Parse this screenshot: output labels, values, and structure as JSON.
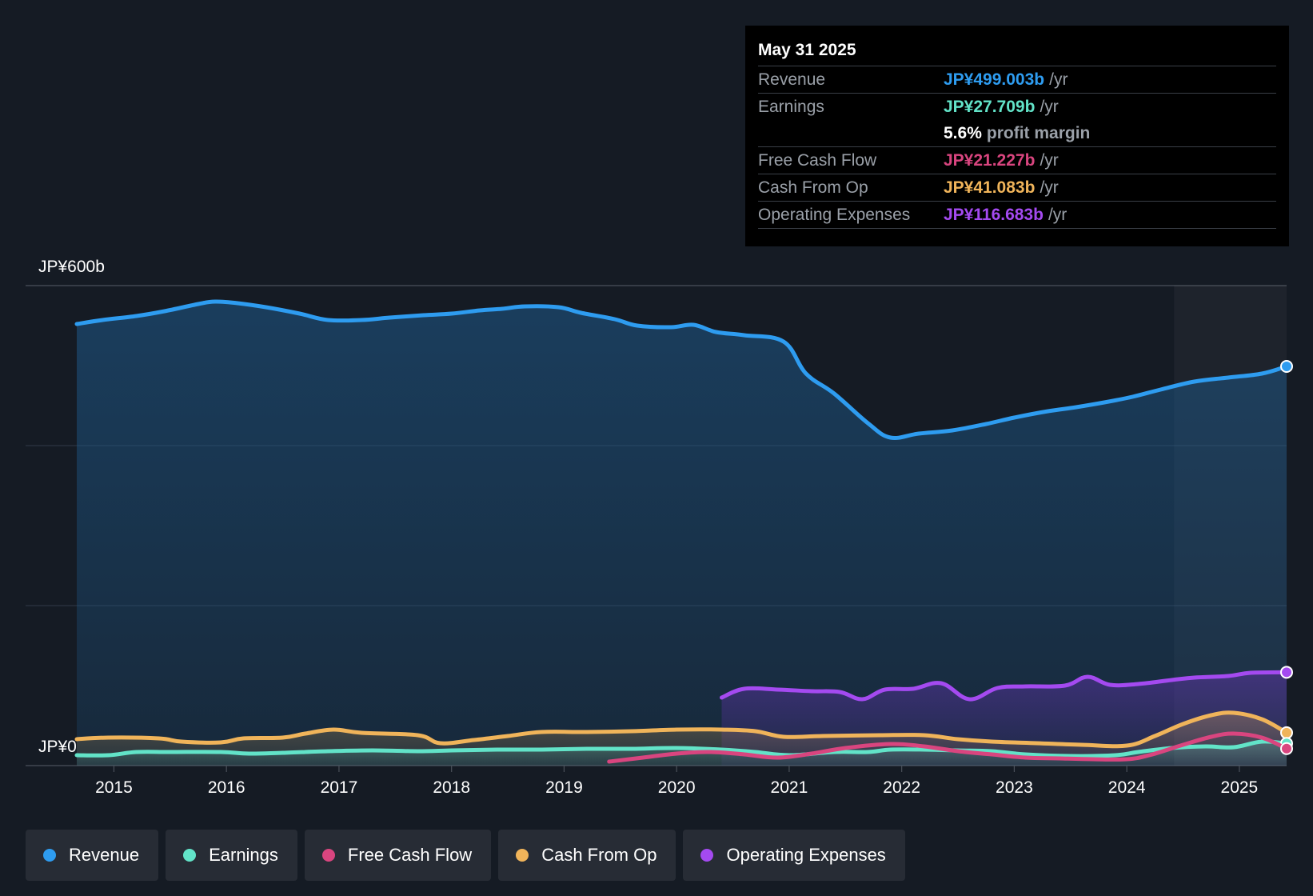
{
  "colors": {
    "background": "#151b24",
    "revenue": "#2e9cf0",
    "earnings": "#62e3c8",
    "free_cash_flow": "#d9457f",
    "cash_from_op": "#f0b45a",
    "operating_expenses": "#a44af0"
  },
  "tooltip": {
    "date": "May 31 2025",
    "rows": [
      {
        "label": "Revenue",
        "value": "JP¥499.003b",
        "unit": "/yr"
      },
      {
        "label": "Earnings",
        "value": "JP¥27.709b",
        "unit": "/yr"
      },
      {
        "margin_value": "5.6%",
        "margin_label": "profit margin"
      },
      {
        "label": "Free Cash Flow",
        "value": "JP¥21.227b",
        "unit": "/yr"
      },
      {
        "label": "Cash From Op",
        "value": "JP¥41.083b",
        "unit": "/yr"
      },
      {
        "label": "Operating Expenses",
        "value": "JP¥116.683b",
        "unit": "/yr"
      }
    ]
  },
  "legend": [
    {
      "label": "Revenue",
      "icon": "revenue-dot-icon"
    },
    {
      "label": "Earnings",
      "icon": "earnings-dot-icon"
    },
    {
      "label": "Free Cash Flow",
      "icon": "free-cash-flow-dot-icon"
    },
    {
      "label": "Cash From Op",
      "icon": "cash-from-op-dot-icon"
    },
    {
      "label": "Operating Expenses",
      "icon": "operating-expenses-dot-icon"
    }
  ],
  "chart_data": {
    "type": "area",
    "title": "",
    "y_label_top": "JP¥600b",
    "y_label_bottom": "JP¥0",
    "ylim": [
      0,
      600
    ],
    "xlim": [
      2014.67,
      2025.42
    ],
    "x_ticks": [
      2015,
      2016,
      2017,
      2018,
      2019,
      2020,
      2021,
      2022,
      2023,
      2024,
      2025
    ],
    "x_tick_labels": [
      "2015",
      "2016",
      "2017",
      "2018",
      "2019",
      "2020",
      "2021",
      "2022",
      "2023",
      "2024",
      "2025"
    ],
    "highlight_from": 2024.42,
    "series": [
      {
        "name": "Revenue",
        "key": "revenue",
        "fill": true,
        "x": [
          2014.67,
          2014.9,
          2015.2,
          2015.45,
          2015.75,
          2015.9,
          2016.1,
          2016.35,
          2016.65,
          2016.9,
          2017.2,
          2017.45,
          2017.75,
          2018.0,
          2018.25,
          2018.45,
          2018.65,
          2018.95,
          2019.15,
          2019.45,
          2019.65,
          2019.95,
          2020.15,
          2020.35,
          2020.6,
          2020.95,
          2021.15,
          2021.4,
          2021.7,
          2021.9,
          2022.15,
          2022.45,
          2022.75,
          2023.0,
          2023.3,
          2023.55,
          2023.8,
          2024.05,
          2024.3,
          2024.6,
          2024.9,
          2025.2,
          2025.42
        ],
        "values": [
          552,
          557,
          562,
          568,
          577,
          580,
          578,
          573,
          565,
          557,
          557,
          560,
          563,
          565,
          569,
          571,
          574,
          573,
          566,
          558,
          550,
          548,
          551,
          542,
          538,
          530,
          490,
          465,
          428,
          410,
          415,
          419,
          427,
          435,
          443,
          448,
          454,
          461,
          470,
          480,
          485,
          490,
          499
        ]
      },
      {
        "name": "Earnings",
        "key": "earnings",
        "fill": true,
        "x": [
          2014.67,
          2014.95,
          2015.2,
          2015.5,
          2015.95,
          2016.2,
          2016.5,
          2016.9,
          2017.3,
          2017.7,
          2018.0,
          2018.4,
          2018.8,
          2019.2,
          2019.6,
          2020.0,
          2020.4,
          2020.7,
          2021.0,
          2021.4,
          2021.7,
          2021.9,
          2022.2,
          2022.5,
          2022.8,
          2023.1,
          2023.5,
          2023.9,
          2024.1,
          2024.4,
          2024.7,
          2024.95,
          2025.2,
          2025.42
        ],
        "values": [
          13,
          13,
          17,
          17,
          17,
          15,
          16,
          18,
          19,
          18,
          19,
          20,
          20,
          21,
          21,
          22,
          20,
          17,
          13,
          17,
          17,
          20,
          20,
          19,
          18,
          14,
          12,
          13,
          17,
          22,
          24,
          23,
          30,
          27.709
        ]
      },
      {
        "name": "Free Cash Flow",
        "key": "free_cash_flow",
        "fill": false,
        "x": [
          2019.4,
          2019.7,
          2020.0,
          2020.3,
          2020.6,
          2020.9,
          2021.2,
          2021.5,
          2021.9,
          2022.2,
          2022.5,
          2022.8,
          2023.1,
          2023.4,
          2023.7,
          2024.0,
          2024.2,
          2024.5,
          2024.75,
          2024.95,
          2025.2,
          2025.42
        ],
        "values": [
          5,
          10,
          15,
          17,
          14,
          10,
          15,
          22,
          27,
          24,
          18,
          14,
          10,
          9,
          8,
          8,
          13,
          26,
          36,
          40,
          35,
          21.227
        ]
      },
      {
        "name": "Cash From Op",
        "key": "cash_from_op",
        "fill": true,
        "x": [
          2014.67,
          2014.95,
          2015.4,
          2015.6,
          2015.95,
          2016.15,
          2016.5,
          2016.7,
          2016.95,
          2017.2,
          2017.7,
          2017.9,
          2018.2,
          2018.5,
          2018.8,
          2019.2,
          2019.6,
          2020.0,
          2020.4,
          2020.7,
          2020.95,
          2021.3,
          2021.8,
          2022.2,
          2022.5,
          2022.8,
          2023.2,
          2023.6,
          2024.0,
          2024.25,
          2024.5,
          2024.75,
          2024.95,
          2025.2,
          2025.42
        ],
        "values": [
          33,
          35,
          34,
          30,
          29,
          34,
          35,
          40,
          45,
          41,
          38,
          28,
          32,
          37,
          42,
          42,
          43,
          45,
          45,
          43,
          36,
          37,
          38,
          38,
          33,
          30,
          28,
          26,
          25,
          37,
          52,
          63,
          66,
          58,
          41.083
        ]
      },
      {
        "name": "Operating Expenses",
        "key": "operating_expenses",
        "fill": true,
        "x": [
          2020.4,
          2020.6,
          2020.9,
          2021.2,
          2021.45,
          2021.65,
          2021.85,
          2022.1,
          2022.35,
          2022.6,
          2022.85,
          2023.1,
          2023.45,
          2023.65,
          2023.85,
          2024.1,
          2024.4,
          2024.6,
          2024.9,
          2025.1,
          2025.42
        ],
        "values": [
          85,
          96,
          95,
          93,
          92,
          83,
          95,
          96,
          103,
          83,
          97,
          99,
          100,
          111,
          101,
          102,
          107,
          110,
          112,
          116,
          116.683
        ]
      }
    ]
  }
}
